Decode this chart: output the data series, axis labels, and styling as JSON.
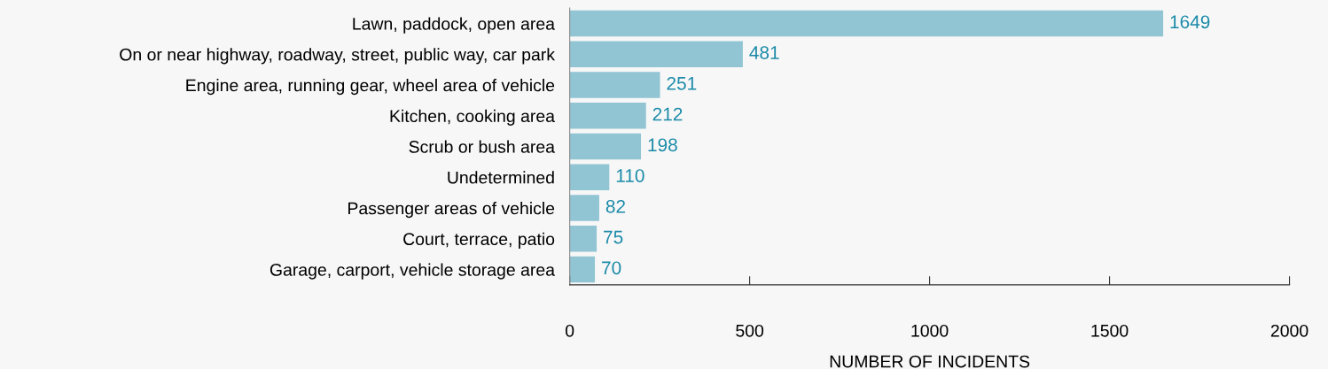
{
  "chart_data": {
    "type": "bar",
    "orientation": "horizontal",
    "xlabel": "NUMBER OF INCIDENTS",
    "categories": [
      "Lawn, paddock, open area",
      "On or near highway, roadway, street, public way, car park",
      "Engine area, running gear, wheel area of vehicle",
      "Kitchen, cooking area",
      "Scrub or bush area",
      "Undetermined",
      "Passenger areas of vehicle",
      "Court, terrace, patio",
      "Garage, carport, vehicle storage area"
    ],
    "values": [
      1649,
      481,
      251,
      212,
      198,
      110,
      82,
      75,
      70
    ],
    "color": "#92c5d4",
    "data_labels": true,
    "xlim": [
      0,
      2000
    ],
    "xticks": [
      0,
      500,
      1000,
      1500,
      2000
    ],
    "grid": false,
    "legend": false
  }
}
